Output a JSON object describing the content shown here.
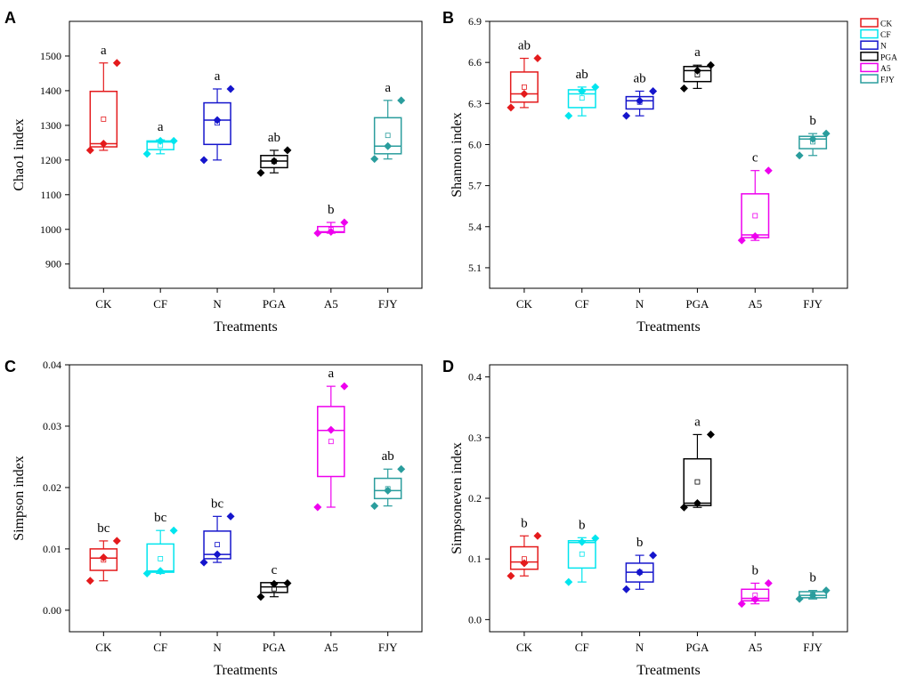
{
  "legend": {
    "position": "top-right of panel B",
    "entries": [
      {
        "name": "CK",
        "color": "#E41A1C"
      },
      {
        "name": "CF",
        "color": "#00E5EE"
      },
      {
        "name": "N",
        "color": "#1515CC"
      },
      {
        "name": "PGA",
        "color": "#000000"
      },
      {
        "name": "A5",
        "color": "#EE00EE"
      },
      {
        "name": "FJY",
        "color": "#2A9D9D"
      }
    ]
  },
  "chart_data": [
    {
      "type": "box",
      "panel": "A",
      "xlabel": "Treatments",
      "ylabel": "Chao1 index",
      "ylim": [
        830,
        1600
      ],
      "yticks": [
        900,
        1000,
        1100,
        1200,
        1300,
        1400,
        1500
      ],
      "ytick_labels": [
        "900",
        "1000",
        "1100",
        "1200",
        "1300",
        "1400",
        "1500"
      ],
      "categories": [
        "CK",
        "CF",
        "N",
        "PGA",
        "A5",
        "FJY"
      ],
      "boxes": [
        {
          "q1": 1238,
          "median": 1247,
          "q3": 1398,
          "wlo": 1228,
          "whi": 1480,
          "mean": 1318,
          "points": [
            1228,
            1247,
            1480
          ],
          "letter": "a"
        },
        {
          "q1": 1230,
          "median": 1252,
          "q3": 1255,
          "wlo": 1218,
          "whi": 1258,
          "mean": 1242,
          "points": [
            1218,
            1255,
            1255
          ],
          "letter": "a"
        },
        {
          "q1": 1245,
          "median": 1315,
          "q3": 1365,
          "wlo": 1200,
          "whi": 1405,
          "mean": 1307,
          "points": [
            1200,
            1315,
            1405
          ],
          "letter": "a"
        },
        {
          "q1": 1178,
          "median": 1197,
          "q3": 1213,
          "wlo": 1163,
          "whi": 1228,
          "mean": 1196,
          "points": [
            1163,
            1197,
            1228
          ],
          "letter": "ab"
        },
        {
          "q1": 991,
          "median": 993,
          "q3": 1008,
          "wlo": 989,
          "whi": 1020,
          "mean": 999,
          "points": [
            989,
            993,
            1020
          ],
          "letter": "b"
        },
        {
          "q1": 1218,
          "median": 1240,
          "q3": 1322,
          "wlo": 1203,
          "whi": 1372,
          "mean": 1271,
          "points": [
            1203,
            1240,
            1372
          ],
          "letter": "a"
        }
      ]
    },
    {
      "type": "box",
      "panel": "B",
      "xlabel": "Treatments",
      "ylabel": "Shannon index",
      "ylim": [
        4.95,
        6.9
      ],
      "yticks": [
        5.1,
        5.4,
        5.7,
        6.0,
        6.3,
        6.6,
        6.9
      ],
      "ytick_labels": [
        "5.1",
        "5.4",
        "5.7",
        "6.0",
        "6.3",
        "6.6",
        "6.9"
      ],
      "categories": [
        "CK",
        "CF",
        "N",
        "PGA",
        "A5",
        "FJY"
      ],
      "boxes": [
        {
          "q1": 6.31,
          "median": 6.37,
          "q3": 6.53,
          "wlo": 6.27,
          "whi": 6.63,
          "mean": 6.42,
          "points": [
            6.27,
            6.37,
            6.63
          ],
          "letter": "ab"
        },
        {
          "q1": 6.27,
          "median": 6.37,
          "q3": 6.4,
          "wlo": 6.21,
          "whi": 6.42,
          "mean": 6.34,
          "points": [
            6.21,
            6.39,
            6.42
          ],
          "letter": "ab"
        },
        {
          "q1": 6.26,
          "median": 6.32,
          "q3": 6.35,
          "wlo": 6.21,
          "whi": 6.39,
          "mean": 6.31,
          "points": [
            6.21,
            6.32,
            6.39
          ],
          "letter": "ab"
        },
        {
          "q1": 6.46,
          "median": 6.54,
          "q3": 6.57,
          "wlo": 6.41,
          "whi": 6.58,
          "mean": 6.51,
          "points": [
            6.41,
            6.54,
            6.58
          ],
          "letter": "a"
        },
        {
          "q1": 5.32,
          "median": 5.34,
          "q3": 5.64,
          "wlo": 5.3,
          "whi": 5.81,
          "mean": 5.48,
          "points": [
            5.3,
            5.33,
            5.81
          ],
          "letter": "c"
        },
        {
          "q1": 5.97,
          "median": 6.04,
          "q3": 6.06,
          "wlo": 5.92,
          "whi": 6.08,
          "mean": 6.02,
          "points": [
            5.92,
            6.04,
            6.08
          ],
          "letter": "b"
        }
      ]
    },
    {
      "type": "box",
      "panel": "C",
      "xlabel": "Treatments",
      "ylabel": "Simpson index",
      "ylim": [
        -0.0035,
        0.04
      ],
      "yticks": [
        0.0,
        0.01,
        0.02,
        0.03,
        0.04
      ],
      "ytick_labels": [
        "0.00",
        "0.01",
        "0.02",
        "0.03",
        "0.04"
      ],
      "categories": [
        "CK",
        "CF",
        "N",
        "PGA",
        "A5",
        "FJY"
      ],
      "boxes": [
        {
          "q1": 0.0065,
          "median": 0.0085,
          "q3": 0.01,
          "wlo": 0.0048,
          "whi": 0.0113,
          "mean": 0.0082,
          "points": [
            0.0048,
            0.0086,
            0.0113
          ],
          "letter": "bc"
        },
        {
          "q1": 0.0062,
          "median": 0.0064,
          "q3": 0.0108,
          "wlo": 0.006,
          "whi": 0.013,
          "mean": 0.0084,
          "points": [
            0.006,
            0.0064,
            0.013
          ],
          "letter": "bc"
        },
        {
          "q1": 0.0084,
          "median": 0.0091,
          "q3": 0.0129,
          "wlo": 0.0078,
          "whi": 0.0153,
          "mean": 0.0107,
          "points": [
            0.0078,
            0.0091,
            0.0153
          ],
          "letter": "bc"
        },
        {
          "q1": 0.0029,
          "median": 0.0038,
          "q3": 0.0045,
          "wlo": 0.0022,
          "whi": 0.0045,
          "mean": 0.0035,
          "points": [
            0.0022,
            0.0043,
            0.0044
          ],
          "letter": "c"
        },
        {
          "q1": 0.0218,
          "median": 0.0293,
          "q3": 0.0332,
          "wlo": 0.0168,
          "whi": 0.0365,
          "mean": 0.0275,
          "points": [
            0.0168,
            0.0294,
            0.0365
          ],
          "letter": "a"
        },
        {
          "q1": 0.0182,
          "median": 0.0195,
          "q3": 0.0215,
          "wlo": 0.017,
          "whi": 0.023,
          "mean": 0.0198,
          "points": [
            0.017,
            0.0195,
            0.023
          ],
          "letter": "ab"
        }
      ]
    },
    {
      "type": "box",
      "panel": "D",
      "xlabel": "Treatments",
      "ylabel": "Simpsoneven index",
      "ylim": [
        -0.02,
        0.42
      ],
      "yticks": [
        0.0,
        0.1,
        0.2,
        0.3,
        0.4
      ],
      "ytick_labels": [
        "0.0",
        "0.1",
        "0.2",
        "0.3",
        "0.4"
      ],
      "categories": [
        "CK",
        "CF",
        "N",
        "PGA",
        "A5",
        "FJY"
      ],
      "boxes": [
        {
          "q1": 0.083,
          "median": 0.095,
          "q3": 0.12,
          "wlo": 0.072,
          "whi": 0.138,
          "mean": 0.1,
          "points": [
            0.072,
            0.093,
            0.138
          ],
          "letter": "b"
        },
        {
          "q1": 0.085,
          "median": 0.127,
          "q3": 0.13,
          "wlo": 0.062,
          "whi": 0.135,
          "mean": 0.108,
          "points": [
            0.062,
            0.128,
            0.134
          ],
          "letter": "b"
        },
        {
          "q1": 0.062,
          "median": 0.078,
          "q3": 0.093,
          "wlo": 0.05,
          "whi": 0.106,
          "mean": 0.078,
          "points": [
            0.05,
            0.078,
            0.106
          ],
          "letter": "b"
        },
        {
          "q1": 0.188,
          "median": 0.192,
          "q3": 0.265,
          "wlo": 0.185,
          "whi": 0.305,
          "mean": 0.227,
          "points": [
            0.185,
            0.192,
            0.305
          ],
          "letter": "a"
        },
        {
          "q1": 0.031,
          "median": 0.035,
          "q3": 0.05,
          "wlo": 0.026,
          "whi": 0.06,
          "mean": 0.04,
          "points": [
            0.026,
            0.033,
            0.06
          ],
          "letter": "b"
        },
        {
          "q1": 0.036,
          "median": 0.04,
          "q3": 0.046,
          "wlo": 0.034,
          "whi": 0.048,
          "mean": 0.041,
          "points": [
            0.034,
            0.04,
            0.048
          ],
          "letter": "b"
        }
      ]
    }
  ]
}
